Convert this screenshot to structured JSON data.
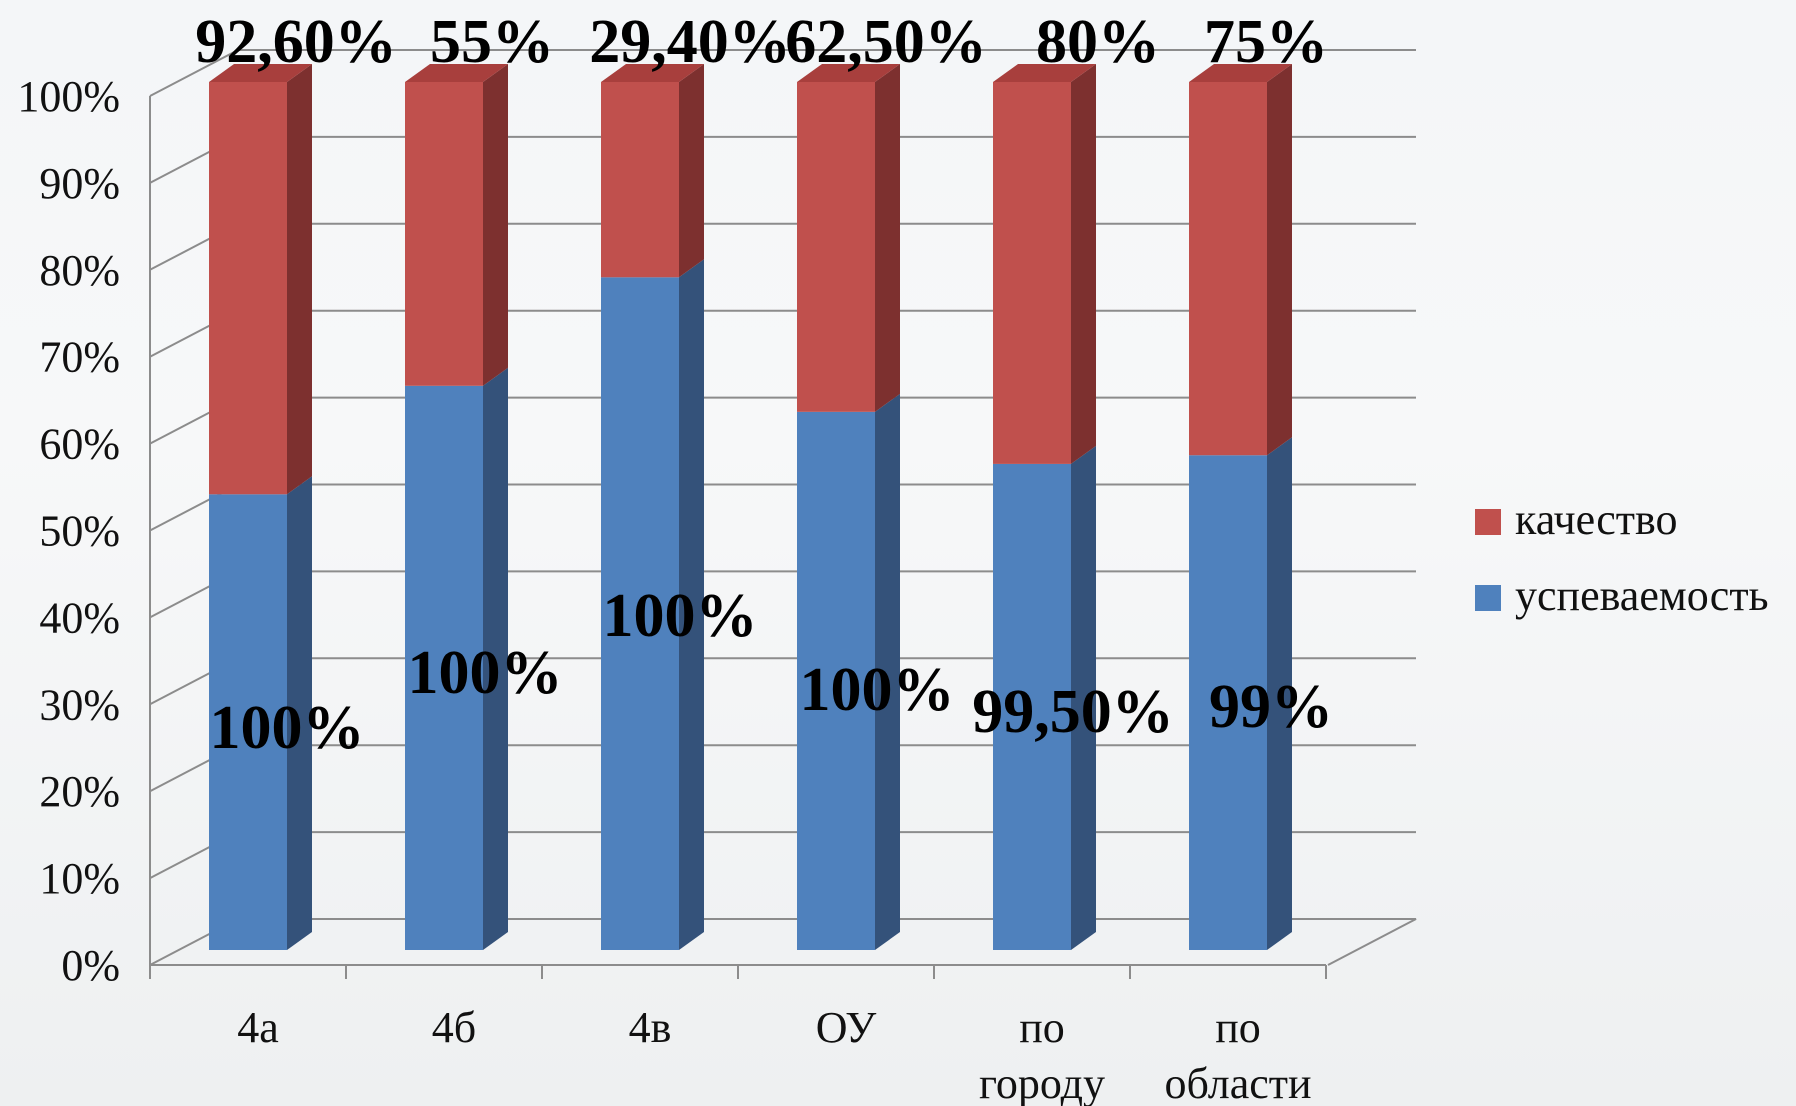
{
  "chart_data": {
    "type": "bar",
    "stacked": true,
    "three_d": true,
    "categories": [
      [
        "4а"
      ],
      [
        "4б"
      ],
      [
        "4в"
      ],
      [
        "ОУ"
      ],
      [
        "по",
        "городу"
      ],
      [
        "по",
        "области"
      ]
    ],
    "series": [
      {
        "name": "успеваемость",
        "color": "#4f81bd",
        "color_side": "#34527a",
        "color_top": "#6b95c9",
        "stack_fraction": [
          0.525,
          0.65,
          0.775,
          0.62,
          0.56,
          0.57
        ],
        "labels": [
          "100%",
          "100%",
          "100%",
          "100%",
          "99,50%",
          "99%"
        ]
      },
      {
        "name": "качество",
        "color": "#c0504d",
        "color_side": "#7d302f",
        "color_top": "#a83f3d",
        "stack_fraction": [
          0.475,
          0.35,
          0.225,
          0.38,
          0.44,
          0.43
        ],
        "labels": [
          "92,60%",
          "55%",
          "29,40%",
          "62,50%",
          "80%",
          "75%"
        ]
      }
    ],
    "y_ticks": [
      "0%",
      "10%",
      "20%",
      "30%",
      "40%",
      "50%",
      "60%",
      "70%",
      "80%",
      "90%",
      "100%"
    ],
    "ylim": [
      0,
      100
    ],
    "grid": true,
    "legend_position": "right",
    "legend_order": [
      "качество",
      "успеваемость"
    ]
  }
}
